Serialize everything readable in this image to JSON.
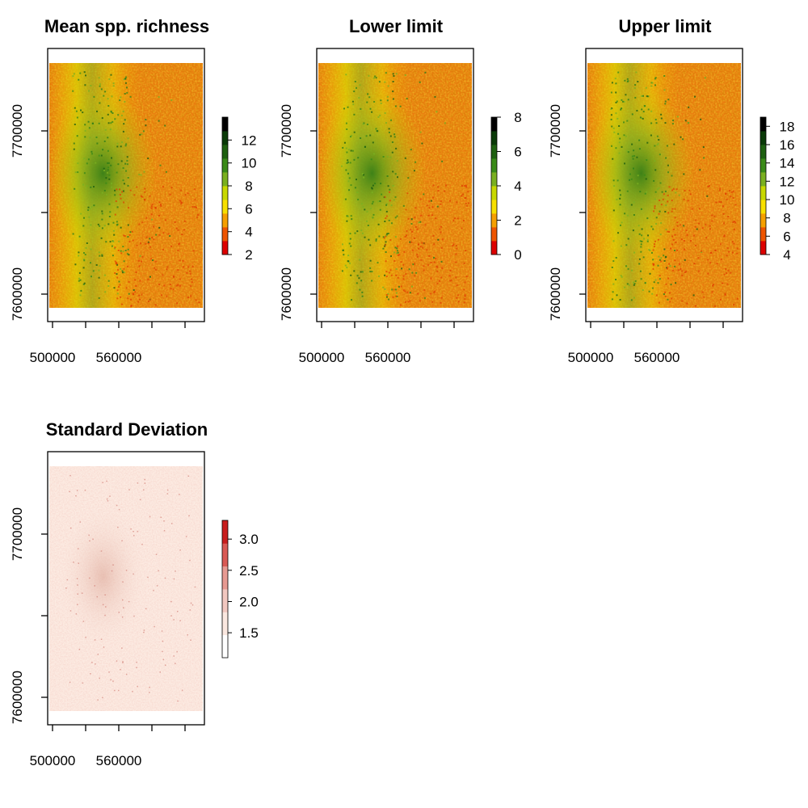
{
  "figure": {
    "panels": [
      {
        "title": "Mean spp. richness",
        "palette": "terrain-red-yellow-green",
        "legend": {
          "min": 2,
          "max": 14,
          "labels": [
            "12",
            "10",
            "8",
            "6",
            "4",
            "2"
          ],
          "label_values": [
            12,
            10,
            8,
            6,
            4,
            2
          ]
        }
      },
      {
        "title": "Lower limit",
        "palette": "terrain-red-yellow-green",
        "legend": {
          "min": 0,
          "max": 8,
          "labels": [
            "8",
            "6",
            "4",
            "2",
            "0"
          ],
          "label_values": [
            8,
            6,
            4,
            2,
            0
          ]
        }
      },
      {
        "title": "Upper limit",
        "palette": "terrain-red-yellow-green",
        "legend": {
          "min": 4,
          "max": 19,
          "labels": [
            "18",
            "16",
            "14",
            "12",
            "10",
            "8",
            "6",
            "4"
          ],
          "label_values": [
            18,
            16,
            14,
            12,
            10,
            8,
            6,
            4
          ]
        }
      },
      {
        "title": "Standard Deviation",
        "palette": "white-to-red",
        "legend": {
          "min": 1.1,
          "max": 3.3,
          "labels": [
            "3.0",
            "2.5",
            "2.0",
            "1.5"
          ],
          "label_values": [
            3.0,
            2.5,
            2.0,
            1.5
          ]
        }
      }
    ],
    "x_axis": {
      "tick_labels": [
        "500000",
        "560000"
      ]
    },
    "y_axis": {
      "tick_labels": [
        "7700000",
        "7600000"
      ]
    },
    "colors": {
      "terrain_scale": [
        "#dd0000",
        "#ee5500",
        "#f5a000",
        "#f8e000",
        "#c8d800",
        "#7ab020",
        "#3a8a18",
        "#1e6010",
        "#0a3a08",
        "#000000"
      ],
      "sd_scale": [
        "#ffffff",
        "#fbe8e0",
        "#f2c8c0",
        "#e79a92",
        "#d95a55",
        "#c81e1e"
      ]
    }
  }
}
